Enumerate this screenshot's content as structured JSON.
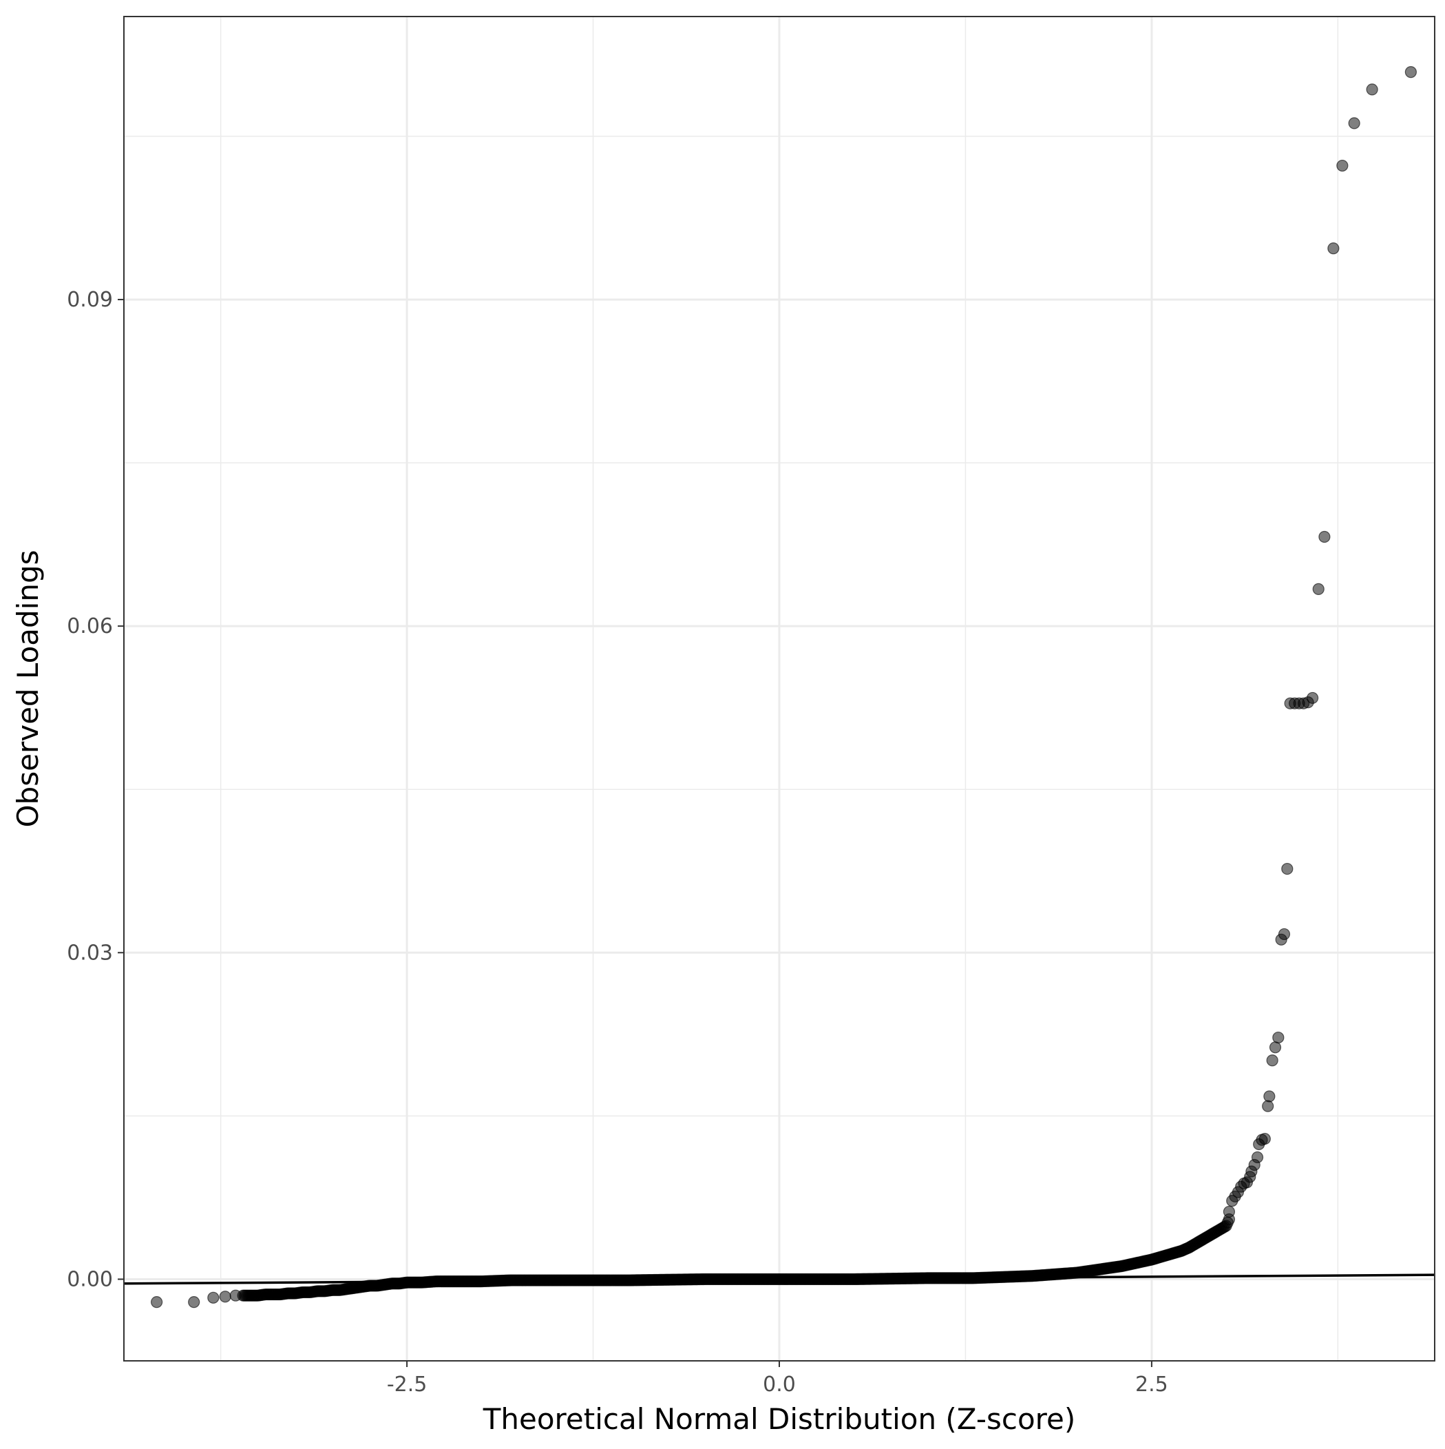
{
  "chart_data": {
    "type": "scatter",
    "title": "",
    "xlabel": "Theoretical Normal Distribution (Z-score)",
    "ylabel": "Observed Loadings",
    "xlim": [
      -4.4,
      4.4
    ],
    "ylim": [
      -0.0075,
      0.116
    ],
    "x_ticks": [
      {
        "value": -2.5,
        "label": "-2.5"
      },
      {
        "value": 0.0,
        "label": "0.0"
      },
      {
        "value": 2.5,
        "label": "2.5"
      }
    ],
    "x_minor_ticks": [
      -3.75,
      -1.25,
      1.25,
      3.75
    ],
    "y_ticks": [
      {
        "value": 0.0,
        "label": "0.00"
      },
      {
        "value": 0.03,
        "label": "0.03"
      },
      {
        "value": 0.06,
        "label": "0.06"
      },
      {
        "value": 0.09,
        "label": "0.09"
      }
    ],
    "y_minor_ticks": [
      0.015,
      0.045,
      0.075,
      0.105
    ],
    "grid": true,
    "reference_line": {
      "x": [
        -4.4,
        4.4
      ],
      "y": [
        -0.0004,
        0.0004
      ]
    },
    "point_color": "#000000",
    "point_opacity": 0.5,
    "curve_points": [
      [
        -4.18,
        -0.0021
      ],
      [
        -3.93,
        -0.0021
      ],
      [
        -3.8,
        -0.0017
      ],
      [
        -3.72,
        -0.0016
      ],
      [
        -3.65,
        -0.0015
      ],
      [
        -3.6,
        -0.0015
      ],
      [
        -3.55,
        -0.0015
      ],
      [
        -3.5,
        -0.0015
      ],
      [
        -3.45,
        -0.0014
      ],
      [
        -3.4,
        -0.0014
      ],
      [
        -3.35,
        -0.0014
      ],
      [
        -3.3,
        -0.0013
      ],
      [
        -3.25,
        -0.0013
      ],
      [
        -3.2,
        -0.0012
      ],
      [
        -3.15,
        -0.0012
      ],
      [
        -3.1,
        -0.0011
      ],
      [
        -3.05,
        -0.0011
      ],
      [
        -3.0,
        -0.001
      ],
      [
        -2.95,
        -0.001
      ],
      [
        -2.9,
        -0.0009
      ],
      [
        -2.85,
        -0.0008
      ],
      [
        -2.8,
        -0.0007
      ],
      [
        -2.75,
        -0.0006
      ],
      [
        -2.7,
        -0.0006
      ],
      [
        -2.65,
        -0.0005
      ],
      [
        -2.6,
        -0.0004
      ],
      [
        -2.55,
        -0.0004
      ],
      [
        -2.5,
        -0.0003
      ],
      [
        -2.4,
        -0.0003
      ],
      [
        -2.3,
        -0.0002
      ],
      [
        -2.2,
        -0.0002
      ],
      [
        -2.0,
        -0.0002
      ],
      [
        -1.8,
        -0.0001
      ],
      [
        -1.5,
        -0.0001
      ],
      [
        -1.0,
        -0.0001
      ],
      [
        -0.5,
        0.0
      ],
      [
        0.0,
        0.0
      ],
      [
        0.5,
        0.0
      ],
      [
        1.0,
        0.0001
      ],
      [
        1.3,
        0.0001
      ],
      [
        1.5,
        0.0002
      ],
      [
        1.7,
        0.0003
      ],
      [
        1.8,
        0.0004
      ],
      [
        1.9,
        0.0005
      ],
      [
        2.0,
        0.0006
      ],
      [
        2.1,
        0.0008
      ],
      [
        2.2,
        0.001
      ],
      [
        2.3,
        0.0012
      ],
      [
        2.4,
        0.0015
      ],
      [
        2.5,
        0.0018
      ],
      [
        2.6,
        0.0022
      ],
      [
        2.7,
        0.0026
      ],
      [
        2.75,
        0.0029
      ],
      [
        2.8,
        0.0033
      ],
      [
        2.85,
        0.0037
      ],
      [
        2.9,
        0.0041
      ],
      [
        2.95,
        0.0045
      ],
      [
        3.0,
        0.0049
      ],
      [
        3.02,
        0.0055
      ]
    ],
    "outlier_points": [
      [
        3.02,
        0.0062
      ],
      [
        3.04,
        0.0072
      ],
      [
        3.06,
        0.0076
      ],
      [
        3.08,
        0.008
      ],
      [
        3.1,
        0.0085
      ],
      [
        3.12,
        0.0088
      ],
      [
        3.14,
        0.0089
      ],
      [
        3.16,
        0.0094
      ],
      [
        3.17,
        0.0099
      ],
      [
        3.19,
        0.0105
      ],
      [
        3.21,
        0.0112
      ],
      [
        3.22,
        0.0124
      ],
      [
        3.24,
        0.0128
      ],
      [
        3.26,
        0.0129
      ],
      [
        3.28,
        0.0159
      ],
      [
        3.29,
        0.0168
      ],
      [
        3.31,
        0.0201
      ],
      [
        3.33,
        0.0213
      ],
      [
        3.35,
        0.0222
      ],
      [
        3.37,
        0.0312
      ],
      [
        3.39,
        0.0317
      ],
      [
        3.41,
        0.0377
      ],
      [
        3.43,
        0.0529
      ],
      [
        3.46,
        0.0529
      ],
      [
        3.49,
        0.0529
      ],
      [
        3.52,
        0.0529
      ],
      [
        3.55,
        0.053
      ],
      [
        3.58,
        0.0534
      ],
      [
        3.62,
        0.0634
      ],
      [
        3.66,
        0.0682
      ],
      [
        3.72,
        0.0947
      ],
      [
        3.78,
        0.1023
      ],
      [
        3.86,
        0.1062
      ],
      [
        3.98,
        0.1093
      ],
      [
        4.24,
        0.1109
      ]
    ]
  }
}
